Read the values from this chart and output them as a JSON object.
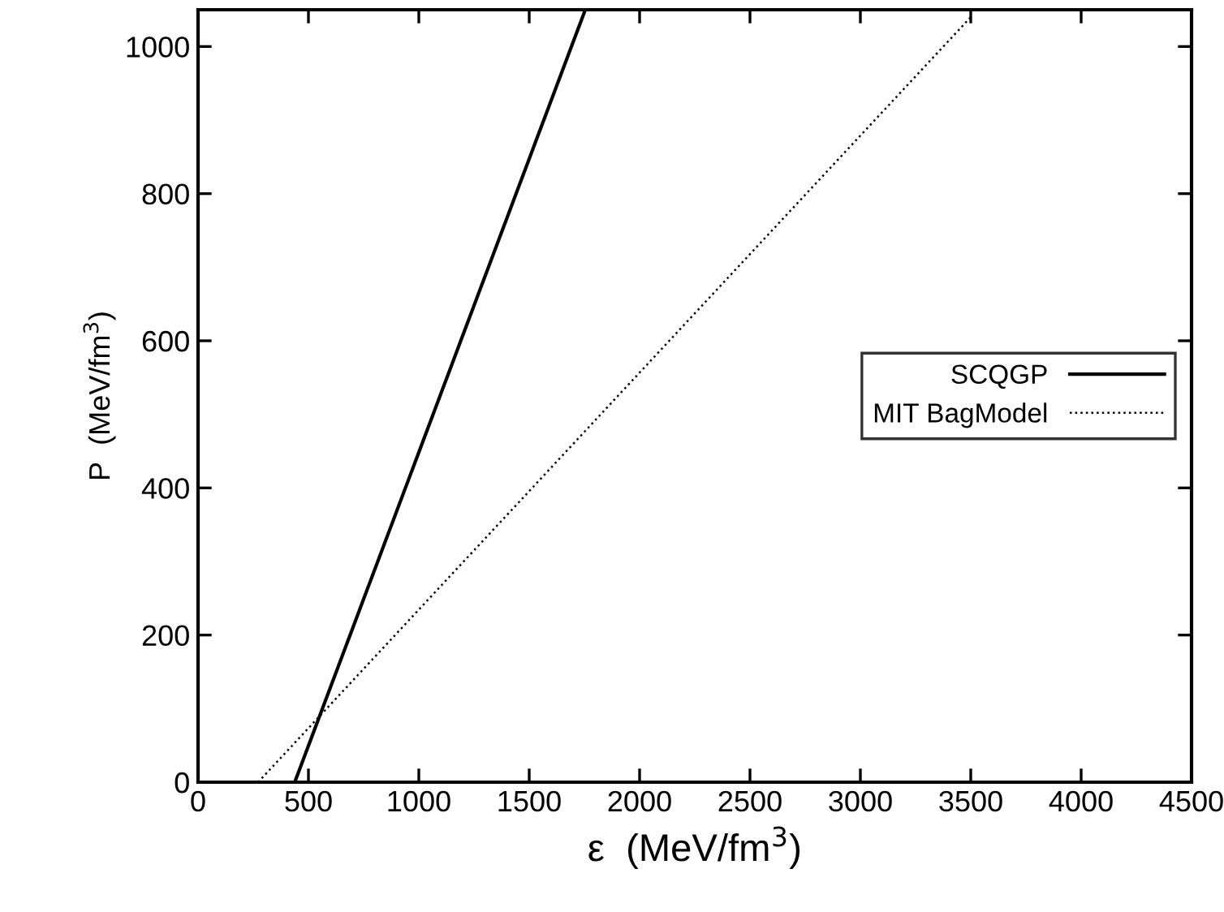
{
  "chart_data": {
    "type": "line",
    "xlabel": "ε  (MeV/fm$^{3}$)",
    "ylabel": "P  (MeV/fm$^{3}$)",
    "xlim": [
      0,
      4500
    ],
    "ylim": [
      0,
      1050
    ],
    "xticks": [
      0,
      500,
      1000,
      1500,
      2000,
      2500,
      3000,
      3500,
      4000,
      4500
    ],
    "yticks": [
      0,
      200,
      400,
      600,
      800,
      1000
    ],
    "grid": false,
    "legend": "right",
    "series": [
      {
        "name": "SCQGP",
        "color": "#000000",
        "line_style": "solid",
        "x": [
          438,
          1754
        ],
        "values": [
          0,
          1050
        ]
      },
      {
        "name": "MIT BagModel",
        "color": "#000000",
        "line_style": "dotted",
        "x": [
          272,
          3500
        ],
        "values": [
          0,
          1040
        ]
      }
    ]
  }
}
